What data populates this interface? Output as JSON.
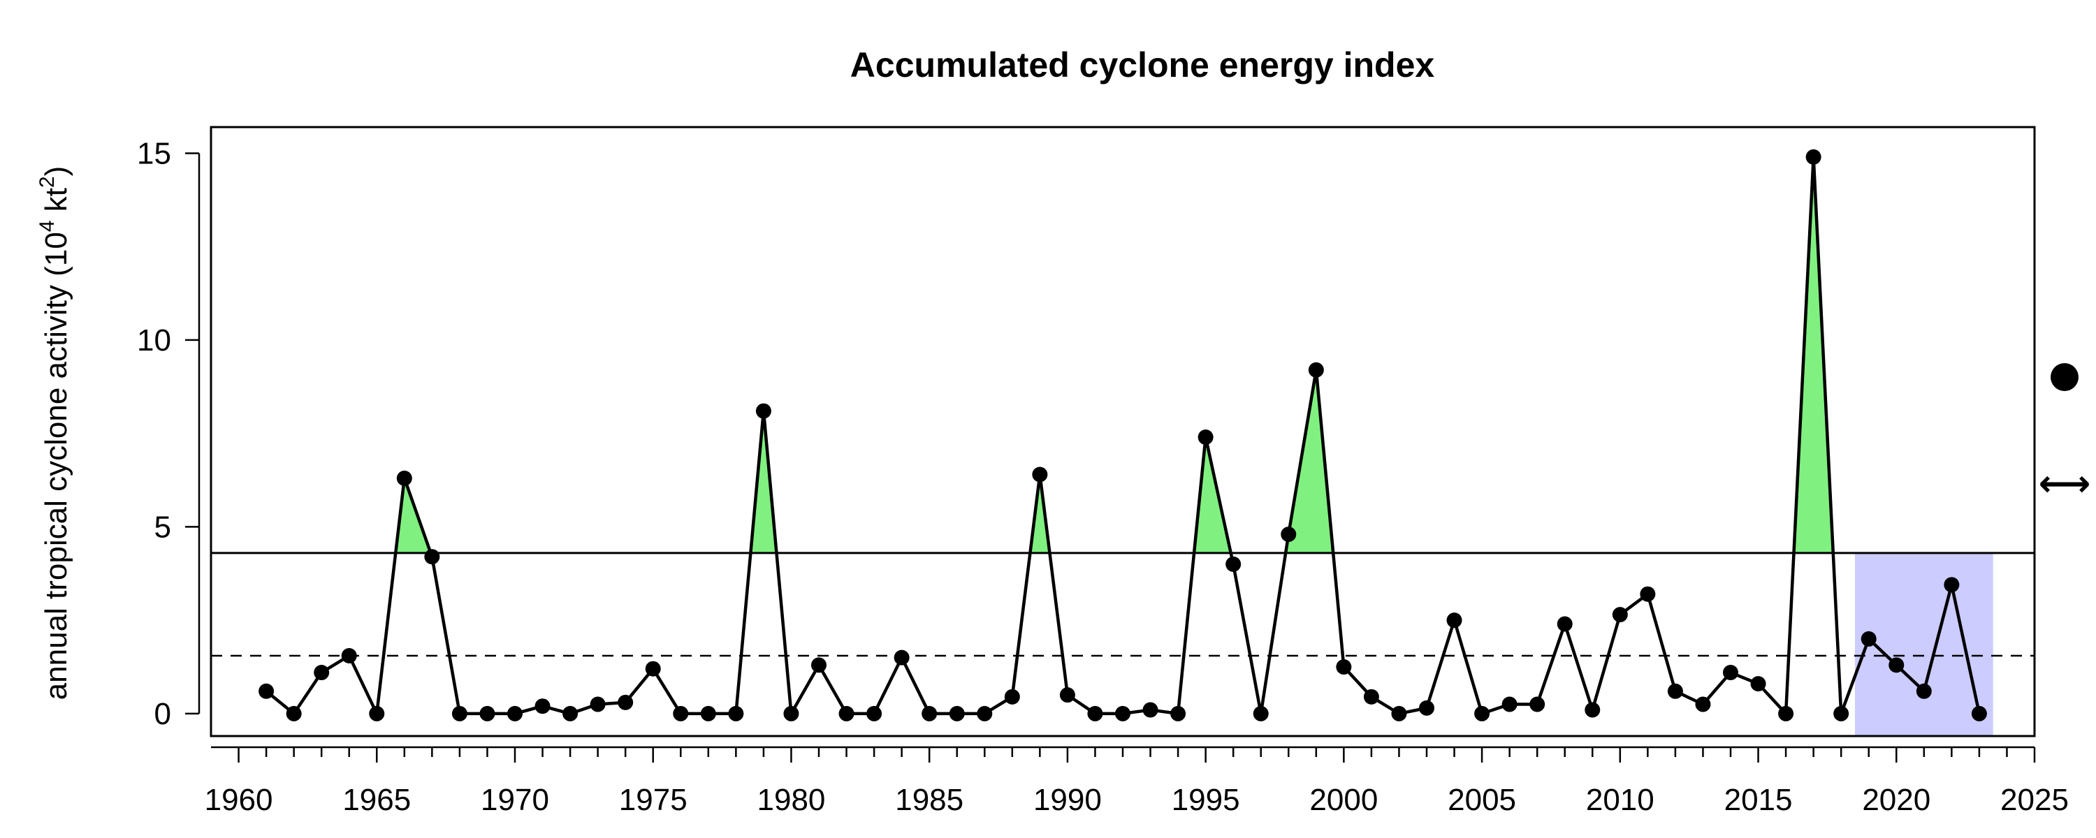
{
  "chart_data": {
    "type": "line",
    "title": "Accumulated cyclone energy index",
    "ylabel": {
      "text": "annual tropical cyclone activity (",
      "base": "10",
      "exp1": "4",
      "unit": " kt",
      "exp2": "2",
      "close": ")"
    },
    "xlim": [
      1959,
      2025
    ],
    "ylim": [
      -0.6,
      15.7
    ],
    "xticks": [
      1960,
      1965,
      1970,
      1975,
      1980,
      1985,
      1990,
      1995,
      2000,
      2005,
      2010,
      2015,
      2020,
      2025
    ],
    "xtick_labels": [
      "1960",
      "1965",
      "1970",
      "1975",
      "1980",
      "1985",
      "1990",
      "1995",
      "2000",
      "2005",
      "2010",
      "2015",
      "2020",
      "2025"
    ],
    "yticks": [
      0,
      5,
      10,
      15
    ],
    "ytick_labels": [
      "0",
      "5",
      "10",
      "15"
    ],
    "threshold": 4.3,
    "mean": 1.55,
    "highlight_range": [
      2018.5,
      2023.5
    ],
    "highlight_top": 4.3,
    "colors": {
      "line": "#000000",
      "above_threshold_fill": "#80f080",
      "highlight_fill": "#ccccff"
    },
    "series": [
      {
        "x": [
          1961,
          1962,
          1963,
          1964,
          1965,
          1966,
          1967,
          1968,
          1969,
          1970,
          1971,
          1972,
          1973,
          1974,
          1975,
          1976,
          1977,
          1978,
          1979,
          1980,
          1981,
          1982,
          1983,
          1984,
          1985,
          1986,
          1987,
          1988,
          1989,
          1990,
          1991,
          1992,
          1993,
          1994,
          1995,
          1996,
          1997,
          1998,
          1999,
          2000,
          2001,
          2002,
          2003,
          2004,
          2005,
          2006,
          2007,
          2008,
          2009,
          2010,
          2011,
          2012,
          2013,
          2014,
          2015,
          2016,
          2017,
          2018,
          2019,
          2020,
          2021,
          2022,
          2023
        ],
        "y": [
          0.6,
          0.0,
          1.1,
          1.55,
          0.0,
          6.3,
          4.2,
          0.0,
          0.0,
          0.0,
          0.2,
          0.0,
          0.25,
          0.3,
          1.2,
          0.0,
          0.0,
          0.0,
          8.1,
          0.0,
          1.3,
          0.0,
          0.0,
          1.5,
          0.0,
          0.0,
          0.0,
          0.45,
          6.4,
          0.5,
          0.0,
          0.0,
          0.1,
          0.0,
          7.4,
          4.0,
          0.0,
          4.8,
          9.2,
          1.25,
          0.45,
          0.0,
          0.15,
          2.5,
          0.0,
          0.25,
          0.25,
          2.4,
          0.1,
          2.65,
          3.2,
          0.6,
          0.25,
          1.1,
          0.8,
          0.0,
          14.9,
          0.0,
          2.0,
          1.3,
          0.6,
          3.45,
          0.0
        ]
      }
    ],
    "side_legend": [
      {
        "symbol": "filled-circle",
        "shape": "circle"
      },
      {
        "symbol": "double-arrow",
        "glyph": "⟷"
      }
    ]
  }
}
